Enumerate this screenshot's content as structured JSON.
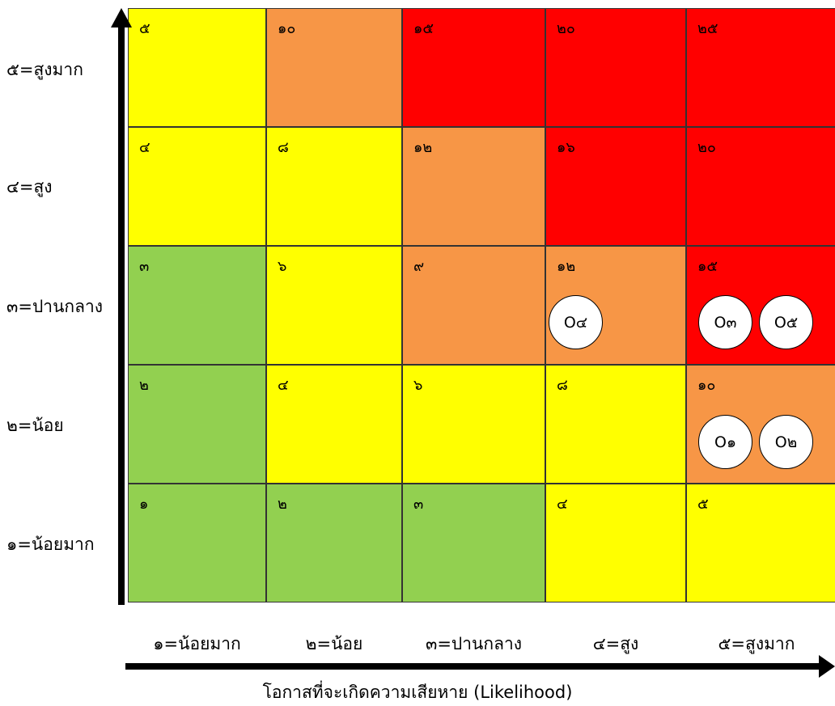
{
  "x_axis": {
    "title": "โอกาสที่จะเกิดความเสียหาย (Likelihood)",
    "labels": [
      "๑=น้อยมาก",
      "๒=น้อย",
      "๓=ปานกลาง",
      "๔=สูง",
      "๕=สูงมาก"
    ]
  },
  "y_axis": {
    "labels_top_to_bottom": [
      "๕=สูงมาก",
      "๔=สูง",
      "๓=ปานกลาง",
      "๒=น้อย",
      "๑=น้อยมาก"
    ]
  },
  "colors": {
    "green": "#92d050",
    "yellow": "#ffff00",
    "orange": "#f79646",
    "red": "#ff0000"
  },
  "matrix": {
    "rows": [
      {
        "cells": [
          {
            "score": "๕",
            "level": "yellow"
          },
          {
            "score": "๑๐",
            "level": "orange"
          },
          {
            "score": "๑๕",
            "level": "red"
          },
          {
            "score": "๒๐",
            "level": "red"
          },
          {
            "score": "๒๕",
            "level": "red"
          }
        ]
      },
      {
        "cells": [
          {
            "score": "๔",
            "level": "yellow"
          },
          {
            "score": "๘",
            "level": "yellow"
          },
          {
            "score": "๑๒",
            "level": "orange"
          },
          {
            "score": "๑๖",
            "level": "red"
          },
          {
            "score": "๒๐",
            "level": "red"
          }
        ]
      },
      {
        "cells": [
          {
            "score": "๓",
            "level": "green"
          },
          {
            "score": "๖",
            "level": "yellow"
          },
          {
            "score": "๙",
            "level": "orange"
          },
          {
            "score": "๑๒",
            "level": "orange"
          },
          {
            "score": "๑๕",
            "level": "red"
          }
        ]
      },
      {
        "cells": [
          {
            "score": "๒",
            "level": "green"
          },
          {
            "score": "๔",
            "level": "yellow"
          },
          {
            "score": "๖",
            "level": "yellow"
          },
          {
            "score": "๘",
            "level": "yellow"
          },
          {
            "score": "๑๐",
            "level": "orange"
          }
        ]
      },
      {
        "cells": [
          {
            "score": "๑",
            "level": "green"
          },
          {
            "score": "๒",
            "level": "green"
          },
          {
            "score": "๓",
            "level": "green"
          },
          {
            "score": "๔",
            "level": "yellow"
          },
          {
            "score": "๕",
            "level": "yellow"
          }
        ]
      }
    ]
  },
  "markers": [
    {
      "label": "O๔",
      "likelihood": "๔",
      "impact": "๓"
    },
    {
      "label": "O๓",
      "likelihood": "๕",
      "impact": "๓"
    },
    {
      "label": "O๕",
      "likelihood": "๕",
      "impact": "๓"
    },
    {
      "label": "O๑",
      "likelihood": "๕",
      "impact": "๒"
    },
    {
      "label": "O๒",
      "likelihood": "๕",
      "impact": "๒"
    }
  ]
}
